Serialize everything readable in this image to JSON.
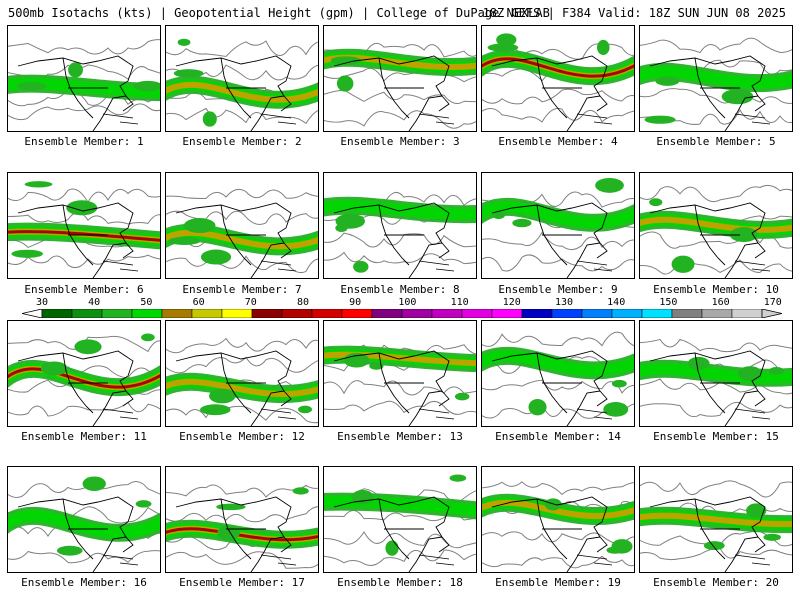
{
  "header": {
    "title_left": "500mb Isotachs (kts) | Geopotential Height (gpm) | College of DuPage NEXLAB",
    "title_right": "18Z GEFS | F384 Valid: 18Z SUN JUN 08 2025"
  },
  "colorbar": {
    "labels": [
      "30",
      "40",
      "50",
      "60",
      "70",
      "80",
      "90",
      "100",
      "110",
      "120",
      "130",
      "140",
      "150",
      "160",
      "170"
    ],
    "colors": [
      "#006400",
      "#0f8f0f",
      "#22b222",
      "#00d800",
      "#a67c00",
      "#c8c800",
      "#ffff00",
      "#8b0000",
      "#b00000",
      "#d40000",
      "#ff0000",
      "#800080",
      "#a000a0",
      "#c000c0",
      "#e000e0",
      "#ff00ff",
      "#0000c0",
      "#0040ff",
      "#0080ff",
      "#00b0ff",
      "#00e0ff",
      "#808080",
      "#a8a8a8",
      "#d0d0d0"
    ]
  },
  "map_colors": {
    "weak": "#22b222",
    "moderate": "#00d800",
    "strong": "#c8a000",
    "core": "#a00000",
    "height_contour": "#808080",
    "coastline": "#000000"
  },
  "panels": [
    {
      "caption": "Ensemble Member: 1",
      "jet": "moderate"
    },
    {
      "caption": "Ensemble Member: 2",
      "jet": "strong"
    },
    {
      "caption": "Ensemble Member: 3",
      "jet": "strong"
    },
    {
      "caption": "Ensemble Member: 4",
      "jet": "core"
    },
    {
      "caption": "Ensemble Member: 5",
      "jet": "moderate"
    },
    {
      "caption": "Ensemble Member: 6",
      "jet": "core"
    },
    {
      "caption": "Ensemble Member: 7",
      "jet": "strong"
    },
    {
      "caption": "Ensemble Member: 8",
      "jet": "moderate"
    },
    {
      "caption": "Ensemble Member: 9",
      "jet": "moderate"
    },
    {
      "caption": "Ensemble Member: 10",
      "jet": "strong"
    },
    {
      "caption": "Ensemble Member: 11",
      "jet": "core"
    },
    {
      "caption": "Ensemble Member: 12",
      "jet": "strong"
    },
    {
      "caption": "Ensemble Member: 13",
      "jet": "strong"
    },
    {
      "caption": "Ensemble Member: 14",
      "jet": "moderate"
    },
    {
      "caption": "Ensemble Member: 15",
      "jet": "moderate"
    },
    {
      "caption": "Ensemble Member: 16",
      "jet": "moderate"
    },
    {
      "caption": "Ensemble Member: 17",
      "jet": "core"
    },
    {
      "caption": "Ensemble Member: 18",
      "jet": "moderate"
    },
    {
      "caption": "Ensemble Member: 19",
      "jet": "strong"
    },
    {
      "caption": "Ensemble Member: 20",
      "jet": "strong"
    }
  ]
}
